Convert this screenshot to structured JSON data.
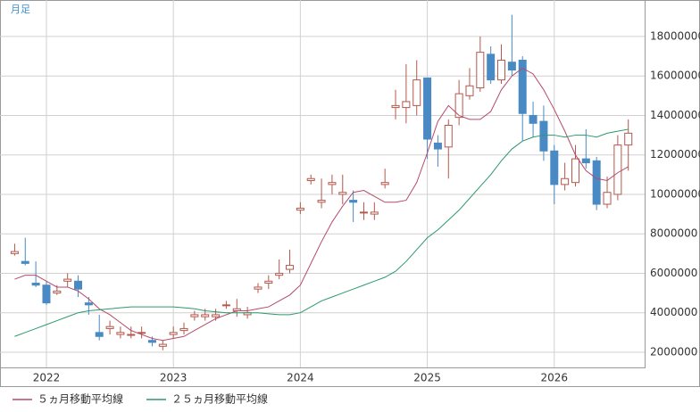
{
  "chart_data": {
    "type": "candlestick",
    "period_label": "月足",
    "categories": [
      null,
      null,
      null,
      "2022",
      null,
      null,
      null,
      null,
      null,
      null,
      null,
      null,
      null,
      null,
      null,
      "2023",
      null,
      null,
      null,
      null,
      null,
      null,
      null,
      null,
      null,
      null,
      null,
      "2024",
      null,
      null,
      null,
      null,
      null,
      null,
      null,
      null,
      null,
      null,
      null,
      "2025",
      null,
      null,
      null,
      null,
      null,
      null,
      null,
      null,
      null,
      null,
      null,
      "2026",
      null,
      null,
      null,
      null,
      null,
      null,
      null
    ],
    "open": [
      7000000.0,
      6600000.0,
      5500000.0,
      5400000.0,
      5000000.0,
      5600000.0,
      5600000.0,
      4500000.0,
      3000000.0,
      3200000.0,
      2900000.0,
      2900000.0,
      3000000.0,
      2600000.0,
      2300000.0,
      2900000.0,
      3100000.0,
      3800000.0,
      3800000.0,
      3800000.0,
      4400000.0,
      4100000.0,
      3900000.0,
      5200000.0,
      5500000.0,
      5900000.0,
      6200000.0,
      9200000.0,
      10700000.0,
      9600000.0,
      10500000.0,
      10000000.0,
      9700000.0,
      9100000.0,
      9000000.0,
      10500000.0,
      14400000.0,
      14400000.0,
      14500000.0,
      15900000.0,
      12600000.0,
      12400000.0,
      13900000.0,
      15000000.0,
      15400000.0,
      17100000.0,
      15800000.0,
      16700000.0,
      16800000.0,
      14000000.0,
      13700000.0,
      12200000.0,
      10500000.0,
      10600000.0,
      11800000.0,
      11700000.0,
      9500000.0,
      10000000.0,
      12500000.0
    ],
    "high": [
      7500000.0,
      7800000.0,
      6600000.0,
      5600000.0,
      5400000.0,
      6000000.0,
      5900000.0,
      4800000.0,
      3900000.0,
      3600000.0,
      3300000.0,
      3300000.0,
      3300000.0,
      2800000.0,
      2600000.0,
      3300000.0,
      3500000.0,
      4100000.0,
      4200000.0,
      4200000.0,
      4600000.0,
      4700000.0,
      4300000.0,
      5500000.0,
      5900000.0,
      6700000.0,
      7200000.0,
      9600000.0,
      11000000.0,
      10800000.0,
      11000000.0,
      11000000.0,
      10200000.0,
      9600000.0,
      9600000.0,
      11300000.0,
      15300000.0,
      16600000.0,
      16800000.0,
      15900000.0,
      13000000.0,
      13800000.0,
      15800000.0,
      16400000.0,
      18000000.0,
      17500000.0,
      17600000.0,
      19100000.0,
      17000000.0,
      14700000.0,
      14500000.0,
      12500000.0,
      11600000.0,
      12500000.0,
      13300000.0,
      11900000.0,
      10900000.0,
      13000000.0,
      13800000.0
    ],
    "low": [
      6900000.0,
      6400000.0,
      5300000.0,
      4400000.0,
      4900000.0,
      5300000.0,
      4800000.0,
      3900000.0,
      2600000.0,
      2900000.0,
      2700000.0,
      2700000.0,
      2700000.0,
      2300000.0,
      2100000.0,
      2700000.0,
      2900000.0,
      3600000.0,
      3600000.0,
      3600000.0,
      4200000.0,
      3800000.0,
      3700000.0,
      5000000.0,
      5200000.0,
      5700000.0,
      6000000.0,
      9000000.0,
      10500000.0,
      9300000.0,
      10000000.0,
      9500000.0,
      8600000.0,
      8700000.0,
      8700000.0,
      10300000.0,
      13800000.0,
      13600000.0,
      14000000.0,
      11800000.0,
      11400000.0,
      10800000.0,
      13500000.0,
      14800000.0,
      15200000.0,
      15600000.0,
      15600000.0,
      16000000.0,
      12700000.0,
      12900000.0,
      11700000.0,
      9500000.0,
      10200000.0,
      10400000.0,
      11300000.0,
      9200000.0,
      9300000.0,
      9700000.0,
      11200000.0
    ],
    "close": [
      7100000.0,
      6500000.0,
      5400000.0,
      4500000.0,
      5100000.0,
      5700000.0,
      5200000.0,
      4400000.0,
      2800000.0,
      3300000.0,
      3000000.0,
      2900000.0,
      3000000.0,
      2500000.0,
      2400000.0,
      3000000.0,
      3200000.0,
      3900000.0,
      3900000.0,
      3900000.0,
      4400000.0,
      4200000.0,
      4000000.0,
      5300000.0,
      5600000.0,
      6000000.0,
      6400000.0,
      9300000.0,
      10800000.0,
      9700000.0,
      10600000.0,
      10100000.0,
      9600000.0,
      9100000.0,
      9100000.0,
      10600000.0,
      14500000.0,
      14700000.0,
      15800000.0,
      12800000.0,
      12300000.0,
      13500000.0,
      15100000.0,
      15500000.0,
      17200000.0,
      15800000.0,
      16800000.0,
      16300000.0,
      14100000.0,
      13600000.0,
      12200000.0,
      10500000.0,
      10800000.0,
      11800000.0,
      11600000.0,
      9500000.0,
      10100000.0,
      12500000.0,
      13100000.0
    ],
    "up_color": "#b5574a",
    "down_color": "#4a8ac4",
    "series": [
      {
        "name": "５ヵ月移動平均線",
        "color": "#b54a6a",
        "values": [
          5700000.0,
          5900000.0,
          5900000.0,
          5600000.0,
          5300000.0,
          5300000.0,
          5100000.0,
          4700000.0,
          4200000.0,
          3900000.0,
          3500000.0,
          3100000.0,
          2900000.0,
          2700000.0,
          2600000.0,
          2700000.0,
          2800000.0,
          3100000.0,
          3400000.0,
          3700000.0,
          3900000.0,
          4100000.0,
          4100000.0,
          4200000.0,
          4300000.0,
          4600000.0,
          4900000.0,
          5400000.0,
          6500000.0,
          7600000.0,
          8600000.0,
          9400000.0,
          10100000.0,
          10200000.0,
          9900000.0,
          9600000.0,
          9600000.0,
          9700000.0,
          10600000.0,
          12100000.0,
          13700000.0,
          14500000.0,
          14000000.0,
          13800000.0,
          13800000.0,
          14200000.0,
          15300000.0,
          16000000.0,
          16400000.0,
          16100000.0,
          15300000.0,
          14300000.0,
          13200000.0,
          12000000.0,
          11200000.0,
          10800000.0,
          10700000.0,
          11100000.0,
          11400000.0
        ]
      },
      {
        "name": "２５ヵ月移動平均線",
        "color": "#2a9a6a",
        "values": [
          2800000.0,
          3000000.0,
          3200000.0,
          3400000.0,
          3600000.0,
          3800000.0,
          4000000.0,
          4100000.0,
          4150000.0,
          4200000.0,
          4250000.0,
          4300000.0,
          4300000.0,
          4300000.0,
          4300000.0,
          4300000.0,
          4250000.0,
          4200000.0,
          4100000.0,
          4050000.0,
          4000000.0,
          4000000.0,
          4000000.0,
          4000000.0,
          3950000.0,
          3900000.0,
          3900000.0,
          4000000.0,
          4300000.0,
          4600000.0,
          4800000.0,
          5000000.0,
          5200000.0,
          5400000.0,
          5600000.0,
          5800000.0,
          6100000.0,
          6600000.0,
          7200000.0,
          7800000.0,
          8200000.0,
          8700000.0,
          9200000.0,
          9800000.0,
          10400000.0,
          11000000.0,
          11700000.0,
          12300000.0,
          12700000.0,
          12900000.0,
          13000000.0,
          13000000.0,
          12900000.0,
          13000000.0,
          13000000.0,
          12900000.0,
          13100000.0,
          13200000.0,
          13300000.0
        ]
      }
    ],
    "ylim": [
      1230000,
      19850000
    ],
    "yticks": [
      2000000,
      4000000,
      6000000,
      8000000,
      10000000,
      12000000,
      14000000,
      16000000,
      18000000
    ],
    "grid": true
  }
}
